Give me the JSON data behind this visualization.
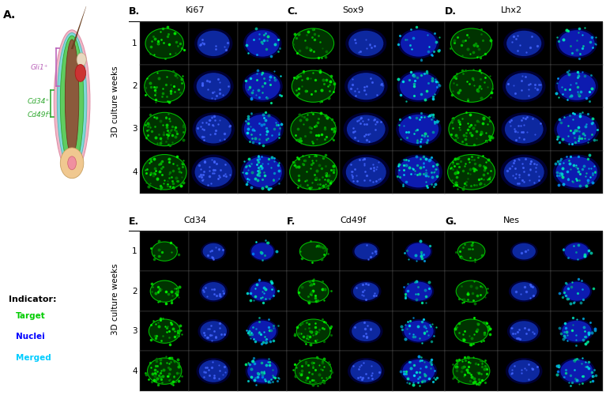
{
  "title_A": "A.",
  "title_B": "B.",
  "title_C": "C.",
  "title_D": "D.",
  "title_E": "E.",
  "title_F": "F.",
  "title_G": "G.",
  "label_B": "Ki67",
  "label_C": "Sox9",
  "label_D": "Lhx2",
  "label_E": "Cd34",
  "label_F": "Cd49f",
  "label_G": "Nes",
  "ylabel": "3D culture weeks",
  "row_labels": [
    "1",
    "2",
    "3",
    "4"
  ],
  "indicator_title": "Indicator:",
  "indicator_items": [
    "Target",
    "Nuclei",
    "Merged"
  ],
  "indicator_colors": [
    "#00cc00",
    "#0000ff",
    "#00ccff"
  ],
  "fig_bg": "#ffffff"
}
